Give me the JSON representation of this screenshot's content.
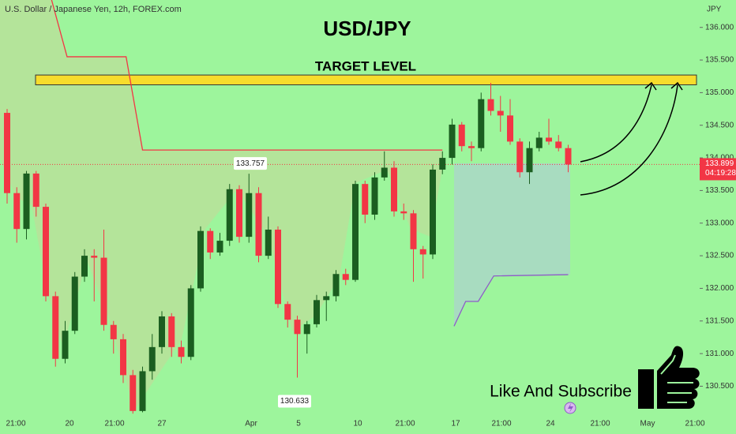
{
  "chart_data": {
    "type": "candlestick",
    "header": "U.S. Dollar / Japanese Yen, 12h, FOREX.com",
    "title": "USD/JPY",
    "currency": "JPY",
    "target_label": "TARGET LEVEL",
    "target_zone": [
      135.12,
      135.27
    ],
    "cta": "Like And Subscribe",
    "x_labels": [
      "21:00",
      "20",
      "21:00",
      "27",
      "Apr",
      "5",
      "10",
      "21:00",
      "17",
      "21:00",
      "24",
      "21:00",
      "May",
      "21:00"
    ],
    "ylim": [
      130.07,
      136.42
    ],
    "yticks": [
      {
        "value": 136,
        "label": "136.000"
      },
      {
        "value": 135.5,
        "label": "135.500"
      },
      {
        "value": 135,
        "label": "135.000"
      },
      {
        "value": 134.5,
        "label": "134.500"
      },
      {
        "value": 134,
        "label": "134.000"
      },
      {
        "value": 133.5,
        "label": "133.500"
      },
      {
        "value": 133,
        "label": "133.000"
      },
      {
        "value": 132.5,
        "label": "132.500"
      },
      {
        "value": 132,
        "label": "132.000"
      },
      {
        "value": 131.5,
        "label": "131.500"
      },
      {
        "value": 131,
        "label": "131.000"
      },
      {
        "value": 130.5,
        "label": "130.500"
      }
    ],
    "up_color": "#1b5e20",
    "down_color": "#f23645",
    "open": [
      134.69,
      133.46,
      132.91,
      133.76,
      133.25,
      131.88,
      130.92,
      131.35,
      132.18,
      132.5,
      132.47,
      131.44,
      131.22,
      130.67,
      130.12,
      130.73,
      131.1,
      131.57,
      131.1,
      130.95,
      132.0,
      132.88,
      132.55,
      132.73,
      133.52,
      132.79,
      133.46,
      132.5,
      132.9,
      131.76,
      131.52,
      131.3,
      131.45,
      131.82,
      131.88,
      132.22,
      132.13,
      133.6,
      133.13,
      133.7,
      133.85,
      133.18,
      133.15,
      132.6,
      132.52,
      133.82,
      134.0,
      134.51,
      134.18,
      134.15,
      134.9,
      134.72,
      134.65,
      134.25,
      133.78,
      134.15,
      134.31,
      134.25,
      134.15
    ],
    "high": [
      134.75,
      133.55,
      133.8,
      133.8,
      133.3,
      131.95,
      131.5,
      132.25,
      132.6,
      132.6,
      132.9,
      131.5,
      131.3,
      130.75,
      130.8,
      131.3,
      131.65,
      131.62,
      131.2,
      132.05,
      132.95,
      132.92,
      132.85,
      133.6,
      133.58,
      133.757,
      133.55,
      133.1,
      132.95,
      131.8,
      131.58,
      131.5,
      131.9,
      131.95,
      132.28,
      132.3,
      133.65,
      133.65,
      133.78,
      134.1,
      133.95,
      133.3,
      133.2,
      132.65,
      133.9,
      134.1,
      134.6,
      134.55,
      134.25,
      135.0,
      135.15,
      134.95,
      134.9,
      134.3,
      134.25,
      134.4,
      134.6,
      134.35,
      134.2
    ],
    "low": [
      133.3,
      132.7,
      132.75,
      133.1,
      131.8,
      130.8,
      130.85,
      131.3,
      132.1,
      131.8,
      131.35,
      131.0,
      130.55,
      130.08,
      130.1,
      130.6,
      131.0,
      130.95,
      130.85,
      130.9,
      131.95,
      132.45,
      132.5,
      132.65,
      132.7,
      132.7,
      132.4,
      132.45,
      131.7,
      131.4,
      130.633,
      131.0,
      131.4,
      131.5,
      131.8,
      132.05,
      132.1,
      133.0,
      133.05,
      133.65,
      133.1,
      133.05,
      132.1,
      132.15,
      132.45,
      133.75,
      133.9,
      134.1,
      133.95,
      134.1,
      134.65,
      134.4,
      134.2,
      133.7,
      133.6,
      134.1,
      134.2,
      134.1,
      133.78
    ],
    "close": [
      133.46,
      132.91,
      133.76,
      133.25,
      131.88,
      130.92,
      131.35,
      132.18,
      132.5,
      132.47,
      131.44,
      131.22,
      130.67,
      130.12,
      130.73,
      131.1,
      131.57,
      131.1,
      130.95,
      132.0,
      132.88,
      132.55,
      132.73,
      133.52,
      132.79,
      133.46,
      132.5,
      132.9,
      131.76,
      131.52,
      131.3,
      131.45,
      131.82,
      131.88,
      132.22,
      132.13,
      133.6,
      133.13,
      133.7,
      133.85,
      133.18,
      133.15,
      132.6,
      132.52,
      133.82,
      134.0,
      134.51,
      134.18,
      134.15,
      134.9,
      134.72,
      134.65,
      134.25,
      133.78,
      134.15,
      134.31,
      134.25,
      134.15,
      133.899
    ],
    "max_label": 133.757,
    "min_label": 130.633,
    "current_price": 133.899,
    "countdown": "04:19:28",
    "lines": [
      {
        "color": "#f23645",
        "x": [
          4.6,
          6.2,
          12.3,
          14,
          45
        ],
        "values": [
          136.42,
          135.55,
          135.55,
          134.12,
          134.12
        ]
      },
      {
        "color": "#8e5cc8",
        "x": [
          46.2,
          47.4,
          48.7,
          50.3,
          58
        ],
        "values": [
          131.42,
          131.8,
          131.8,
          132.19,
          132.21
        ]
      }
    ]
  }
}
